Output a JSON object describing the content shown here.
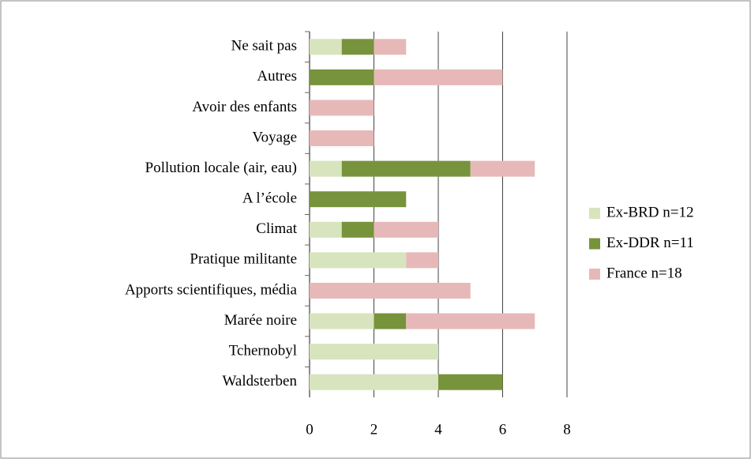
{
  "chart_data": {
    "type": "stacked-bar-horizontal",
    "categories": [
      "Ne sait pas",
      "Autres",
      "Avoir des enfants",
      "Voyage",
      "Pollution locale (air, eau)",
      "A l’école",
      "Climat",
      "Pratique militante",
      "Apports scientifiques, média",
      "Marée noire",
      "Tchernobyl",
      "Waldsterben"
    ],
    "series": [
      {
        "name": "Ex-BRD n=12",
        "color": "#d7e4bd",
        "values": [
          1,
          0,
          0,
          0,
          1,
          0,
          1,
          3,
          0,
          2,
          4,
          4
        ]
      },
      {
        "name": "Ex-DDR n=11",
        "color": "#77933c",
        "values": [
          1,
          2,
          0,
          0,
          4,
          3,
          1,
          0,
          0,
          1,
          0,
          2
        ]
      },
      {
        "name": "France n=18",
        "color": "#e6b9b8",
        "values": [
          1,
          4,
          2,
          2,
          2,
          0,
          2,
          1,
          5,
          4,
          0,
          0
        ]
      }
    ],
    "xlim": [
      0,
      8
    ],
    "xticks": [
      0,
      2,
      4,
      6,
      8
    ],
    "grid": true,
    "legend": "right"
  }
}
